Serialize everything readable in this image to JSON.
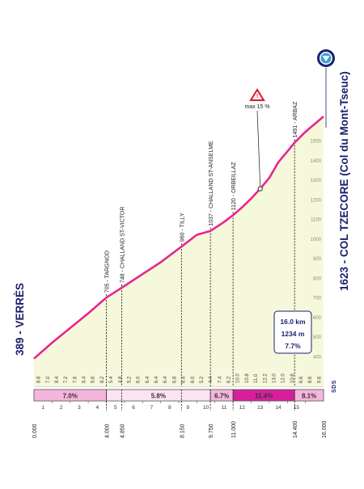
{
  "chart_data": {
    "type": "area",
    "title": "",
    "start": {
      "label": "389 - VERRÈS",
      "elevation": 389,
      "km": 0
    },
    "finish": {
      "label": "1623 - COL TZECORE (Col du Mont-Tseuc)",
      "elevation": 1623,
      "km": 16.0
    },
    "xlabel": "",
    "ylabel": "",
    "xlim": [
      0,
      16
    ],
    "ylim": [
      200,
      1700
    ],
    "grid": true,
    "alt_ticks": [
      "400",
      "500",
      "600",
      "700",
      "800",
      "900",
      "1000",
      "1100",
      "1200",
      "1300",
      "1400",
      "1500"
    ],
    "profile": [
      {
        "km": 0,
        "elev": 389
      },
      {
        "km": 1,
        "elev": 470
      },
      {
        "km": 2,
        "elev": 545
      },
      {
        "km": 3,
        "elev": 620
      },
      {
        "km": 4,
        "elev": 700
      },
      {
        "km": 4.85,
        "elev": 750
      },
      {
        "km": 6,
        "elev": 820
      },
      {
        "km": 7,
        "elev": 880
      },
      {
        "km": 8.15,
        "elev": 960
      },
      {
        "km": 9,
        "elev": 1020
      },
      {
        "km": 9.75,
        "elev": 1040
      },
      {
        "km": 10.5,
        "elev": 1085
      },
      {
        "km": 11,
        "elev": 1120
      },
      {
        "km": 11.5,
        "elev": 1160
      },
      {
        "km": 12,
        "elev": 1205
      },
      {
        "km": 12.5,
        "elev": 1255
      },
      {
        "km": 13,
        "elev": 1310
      },
      {
        "km": 13.5,
        "elev": 1390
      },
      {
        "km": 14,
        "elev": 1445
      },
      {
        "km": 14.4,
        "elev": 1490
      },
      {
        "km": 15,
        "elev": 1545
      },
      {
        "km": 16,
        "elev": 1623
      }
    ],
    "places": [
      {
        "km": 4.0,
        "label": "705 - TARGNOD"
      },
      {
        "km": 4.85,
        "label": "748 - CHALLAND ST-VICTOR"
      },
      {
        "km": 8.15,
        "label": "960 - TILLY"
      },
      {
        "km": 9.75,
        "label": "1037 - CHALLAND ST-ANSELME"
      },
      {
        "km": 11.0,
        "label": "1120 - ORBEILLAZ"
      },
      {
        "km": 14.4,
        "label": "1491 - ARBAZ"
      }
    ],
    "km_gradients": [
      "8.8",
      "7.0",
      "8.4",
      "7.2",
      "7.6",
      "8.4",
      "5.6",
      "8.2",
      "5.4",
      "4.8",
      "5.2",
      "6.0",
      "6.4",
      "6.4",
      "6.4",
      "6.8",
      "6.4",
      "6.0",
      "5.2",
      "4.4",
      "7.4",
      "6.2",
      "10.0",
      "10.8",
      "11.0",
      "12.2",
      "13.0",
      "12.0",
      "10.6",
      "6.6",
      "8.6",
      "9.6"
    ],
    "segments": [
      {
        "from": 0,
        "to": 4,
        "grade": "7.0%",
        "color": "#f4b6dc"
      },
      {
        "from": 4,
        "to": 9.75,
        "grade": "5.8%",
        "color": "#fbe3f1"
      },
      {
        "from": 9.75,
        "to": 11,
        "grade": "6.7%",
        "color": "#f4b6dc"
      },
      {
        "from": 11,
        "to": 14.4,
        "grade": "11.4%",
        "color": "#d81f9b"
      },
      {
        "from": 14.4,
        "to": 16,
        "grade": "8.1%",
        "color": "#f4b6dc"
      }
    ],
    "km_numbers": [
      "1",
      "2",
      "3",
      "4",
      "5",
      "6",
      "7",
      "8",
      "9",
      "10",
      "11",
      "12",
      "13",
      "14",
      "15"
    ],
    "distance_labels": [
      "0.000",
      "4.000",
      "4.850",
      "8.150",
      "9.750",
      "11.000",
      "14.400",
      "16.000"
    ],
    "info_box": {
      "distance": "16.0 km",
      "gain": "1234 m",
      "avg": "7.7%"
    },
    "max_badge": {
      "label": "max 15 %",
      "km": 12.5
    },
    "sds": "SDS",
    "colors": {
      "profile": "#e8258f",
      "fill": "#f6f8dc",
      "accent": "#1a1f6b"
    }
  }
}
